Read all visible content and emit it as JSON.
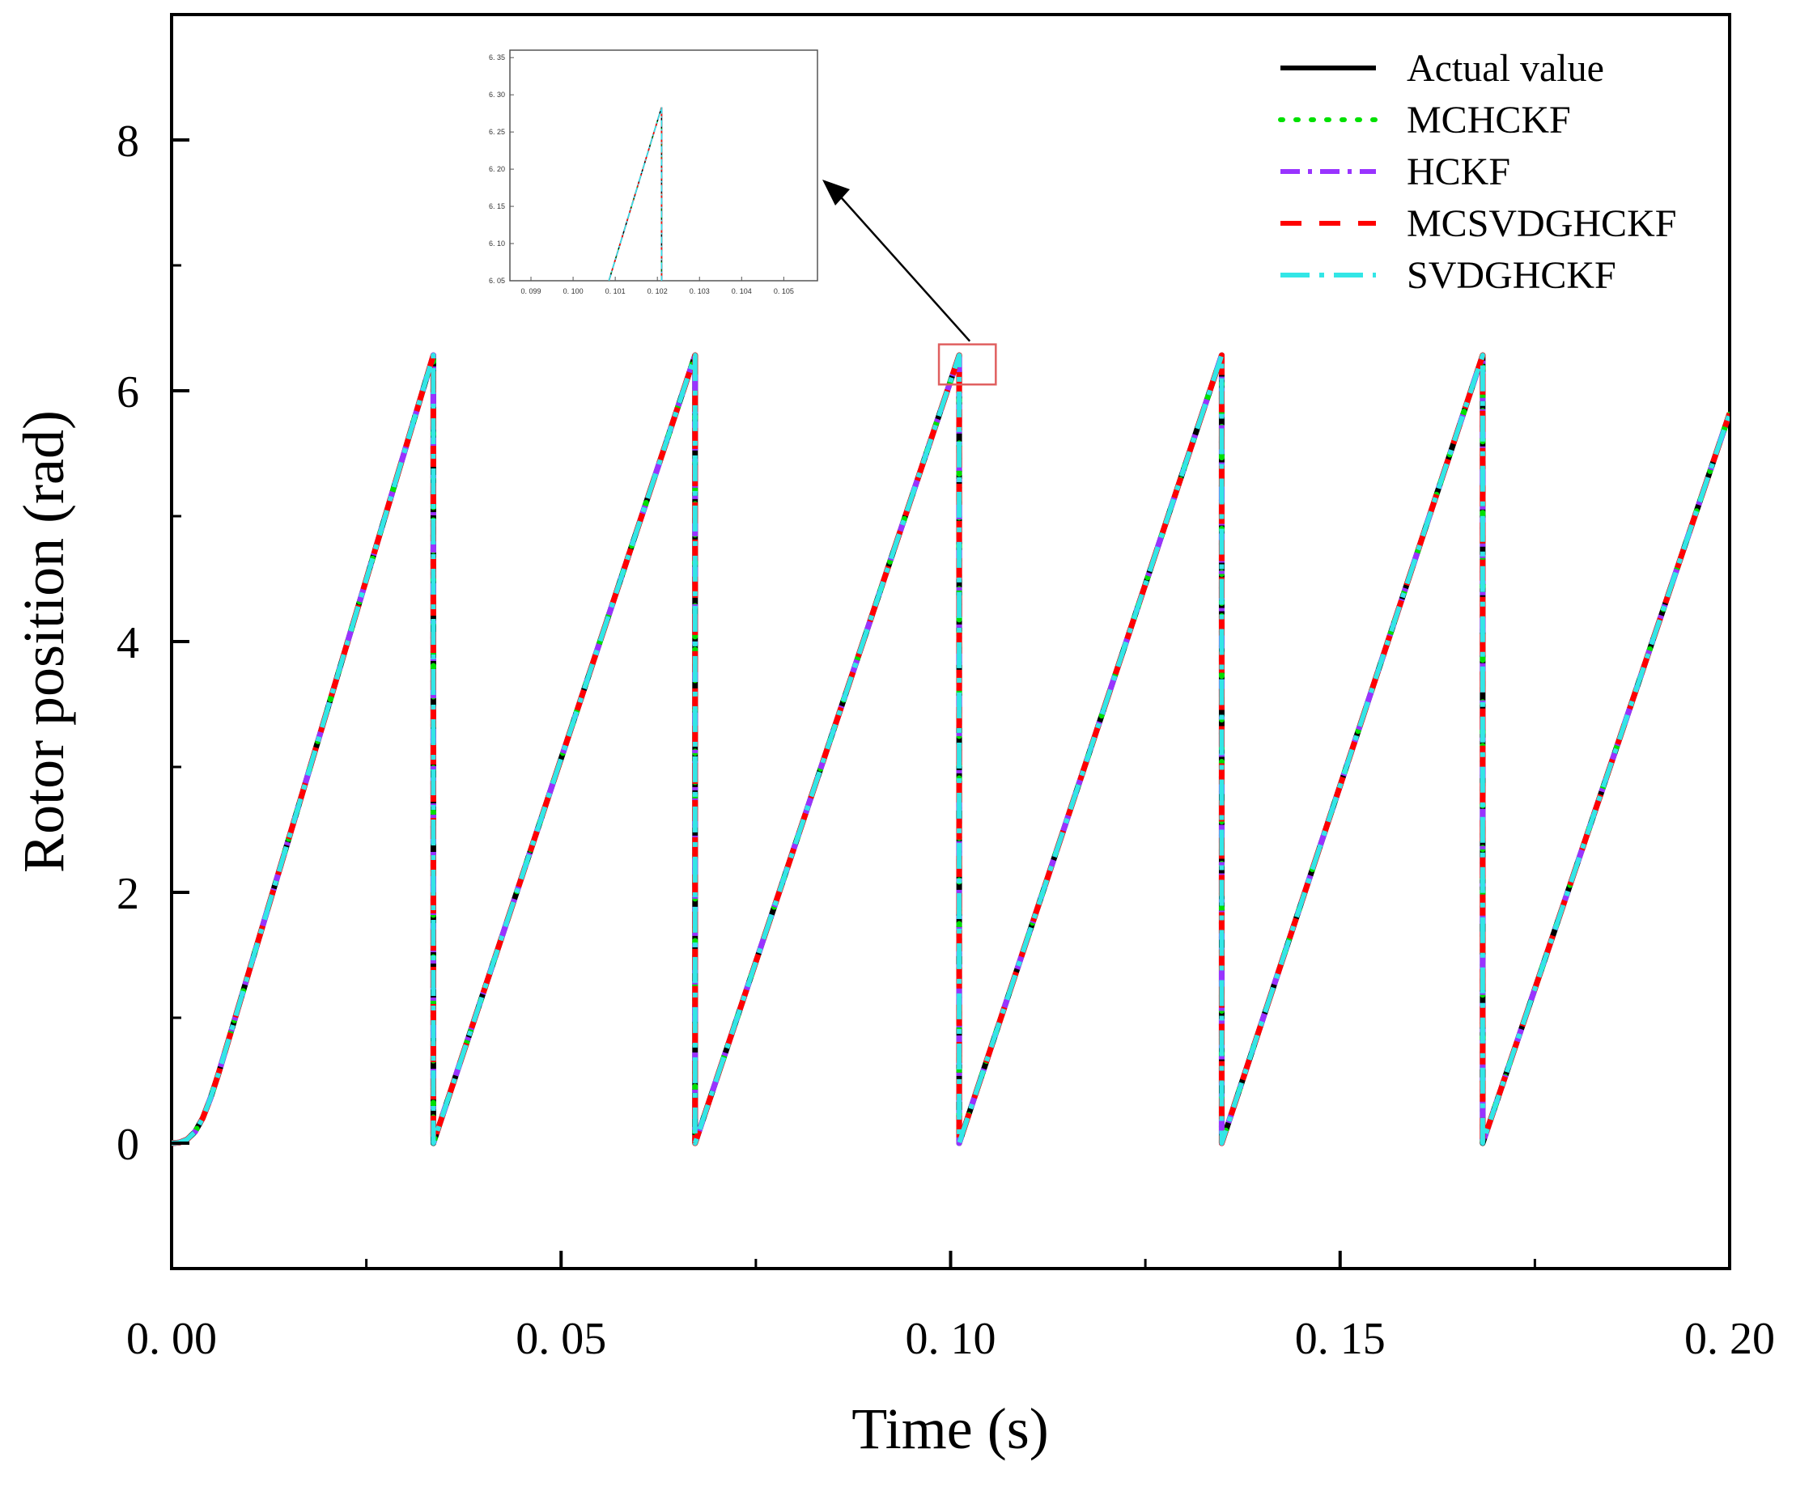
{
  "chart_data": {
    "type": "line",
    "title": "",
    "xlabel": "Time (s)",
    "ylabel": "Rotor position (rad)",
    "xlim": [
      0.0,
      0.2
    ],
    "ylim": [
      -1.0,
      9.0
    ],
    "x_ticks": [
      0.0,
      0.05,
      0.1,
      0.15,
      0.2
    ],
    "x_tick_labels": [
      "0. 00",
      "0. 05",
      "0. 10",
      "0. 15",
      "0. 20"
    ],
    "x_minor_ticks": [
      0.025,
      0.075,
      0.125,
      0.175
    ],
    "y_ticks": [
      0,
      2,
      4,
      6,
      8
    ],
    "y_tick_labels": [
      "0",
      "2",
      "4",
      "6",
      "8"
    ],
    "y_minor_ticks": [
      -1,
      1,
      3,
      5,
      7,
      9
    ],
    "grid": false,
    "legend_position": "top-right",
    "sawtooth_max": 6.2832,
    "x": [
      0.0,
      0.001,
      0.002,
      0.003,
      0.004,
      0.005,
      0.006,
      0.0336,
      0.0336,
      0.0672,
      0.0672,
      0.1011,
      0.1011,
      0.1348,
      0.1348,
      0.1683,
      0.1683,
      0.2
    ],
    "y": [
      0.0,
      0.005,
      0.03,
      0.09,
      0.2,
      0.36,
      0.55,
      6.2832,
      0.0,
      6.2832,
      0.0,
      6.2832,
      0.0,
      6.2832,
      0.0,
      6.2832,
      0.0,
      5.82
    ],
    "series": [
      {
        "name": "Actual value",
        "color": "#000000",
        "style": "solid"
      },
      {
        "name": "MCHCKF",
        "color": "#00e000",
        "style": "dotted"
      },
      {
        "name": "HCKF",
        "color": "#9933ff",
        "style": "dash-dot-dot"
      },
      {
        "name": "MCSVDGHCKF",
        "color": "#ff0000",
        "style": "dashed"
      },
      {
        "name": "SVDGHCKF",
        "color": "#33e6e6",
        "style": "dash-dot"
      }
    ],
    "annotations": [
      {
        "type": "zoom-box",
        "x_range": [
          0.0985,
          0.1058
        ],
        "y_range": [
          6.05,
          6.37
        ],
        "color": "#e06060"
      },
      {
        "type": "arrow",
        "from": "zoom-box",
        "to": "inset"
      }
    ],
    "inset": {
      "xlim": [
        0.0985,
        0.1058
      ],
      "ylim": [
        6.05,
        6.36
      ],
      "x_ticks": [
        0.099,
        0.1,
        0.101,
        0.102,
        0.103,
        0.104,
        0.105
      ],
      "x_tick_labels": [
        "0. 099",
        "0. 100",
        "0. 101",
        "0. 102",
        "0. 103",
        "0. 104",
        "0. 105"
      ],
      "y_ticks": [
        6.05,
        6.1,
        6.15,
        6.2,
        6.25,
        6.3,
        6.35
      ],
      "y_tick_labels": [
        "6. 05",
        "6. 10",
        "6. 15",
        "6. 20",
        "6. 25",
        "6. 30",
        "6. 35"
      ],
      "x": [
        0.10085,
        0.1021,
        0.1021
      ],
      "y": [
        6.05,
        6.2832,
        6.05
      ]
    }
  }
}
